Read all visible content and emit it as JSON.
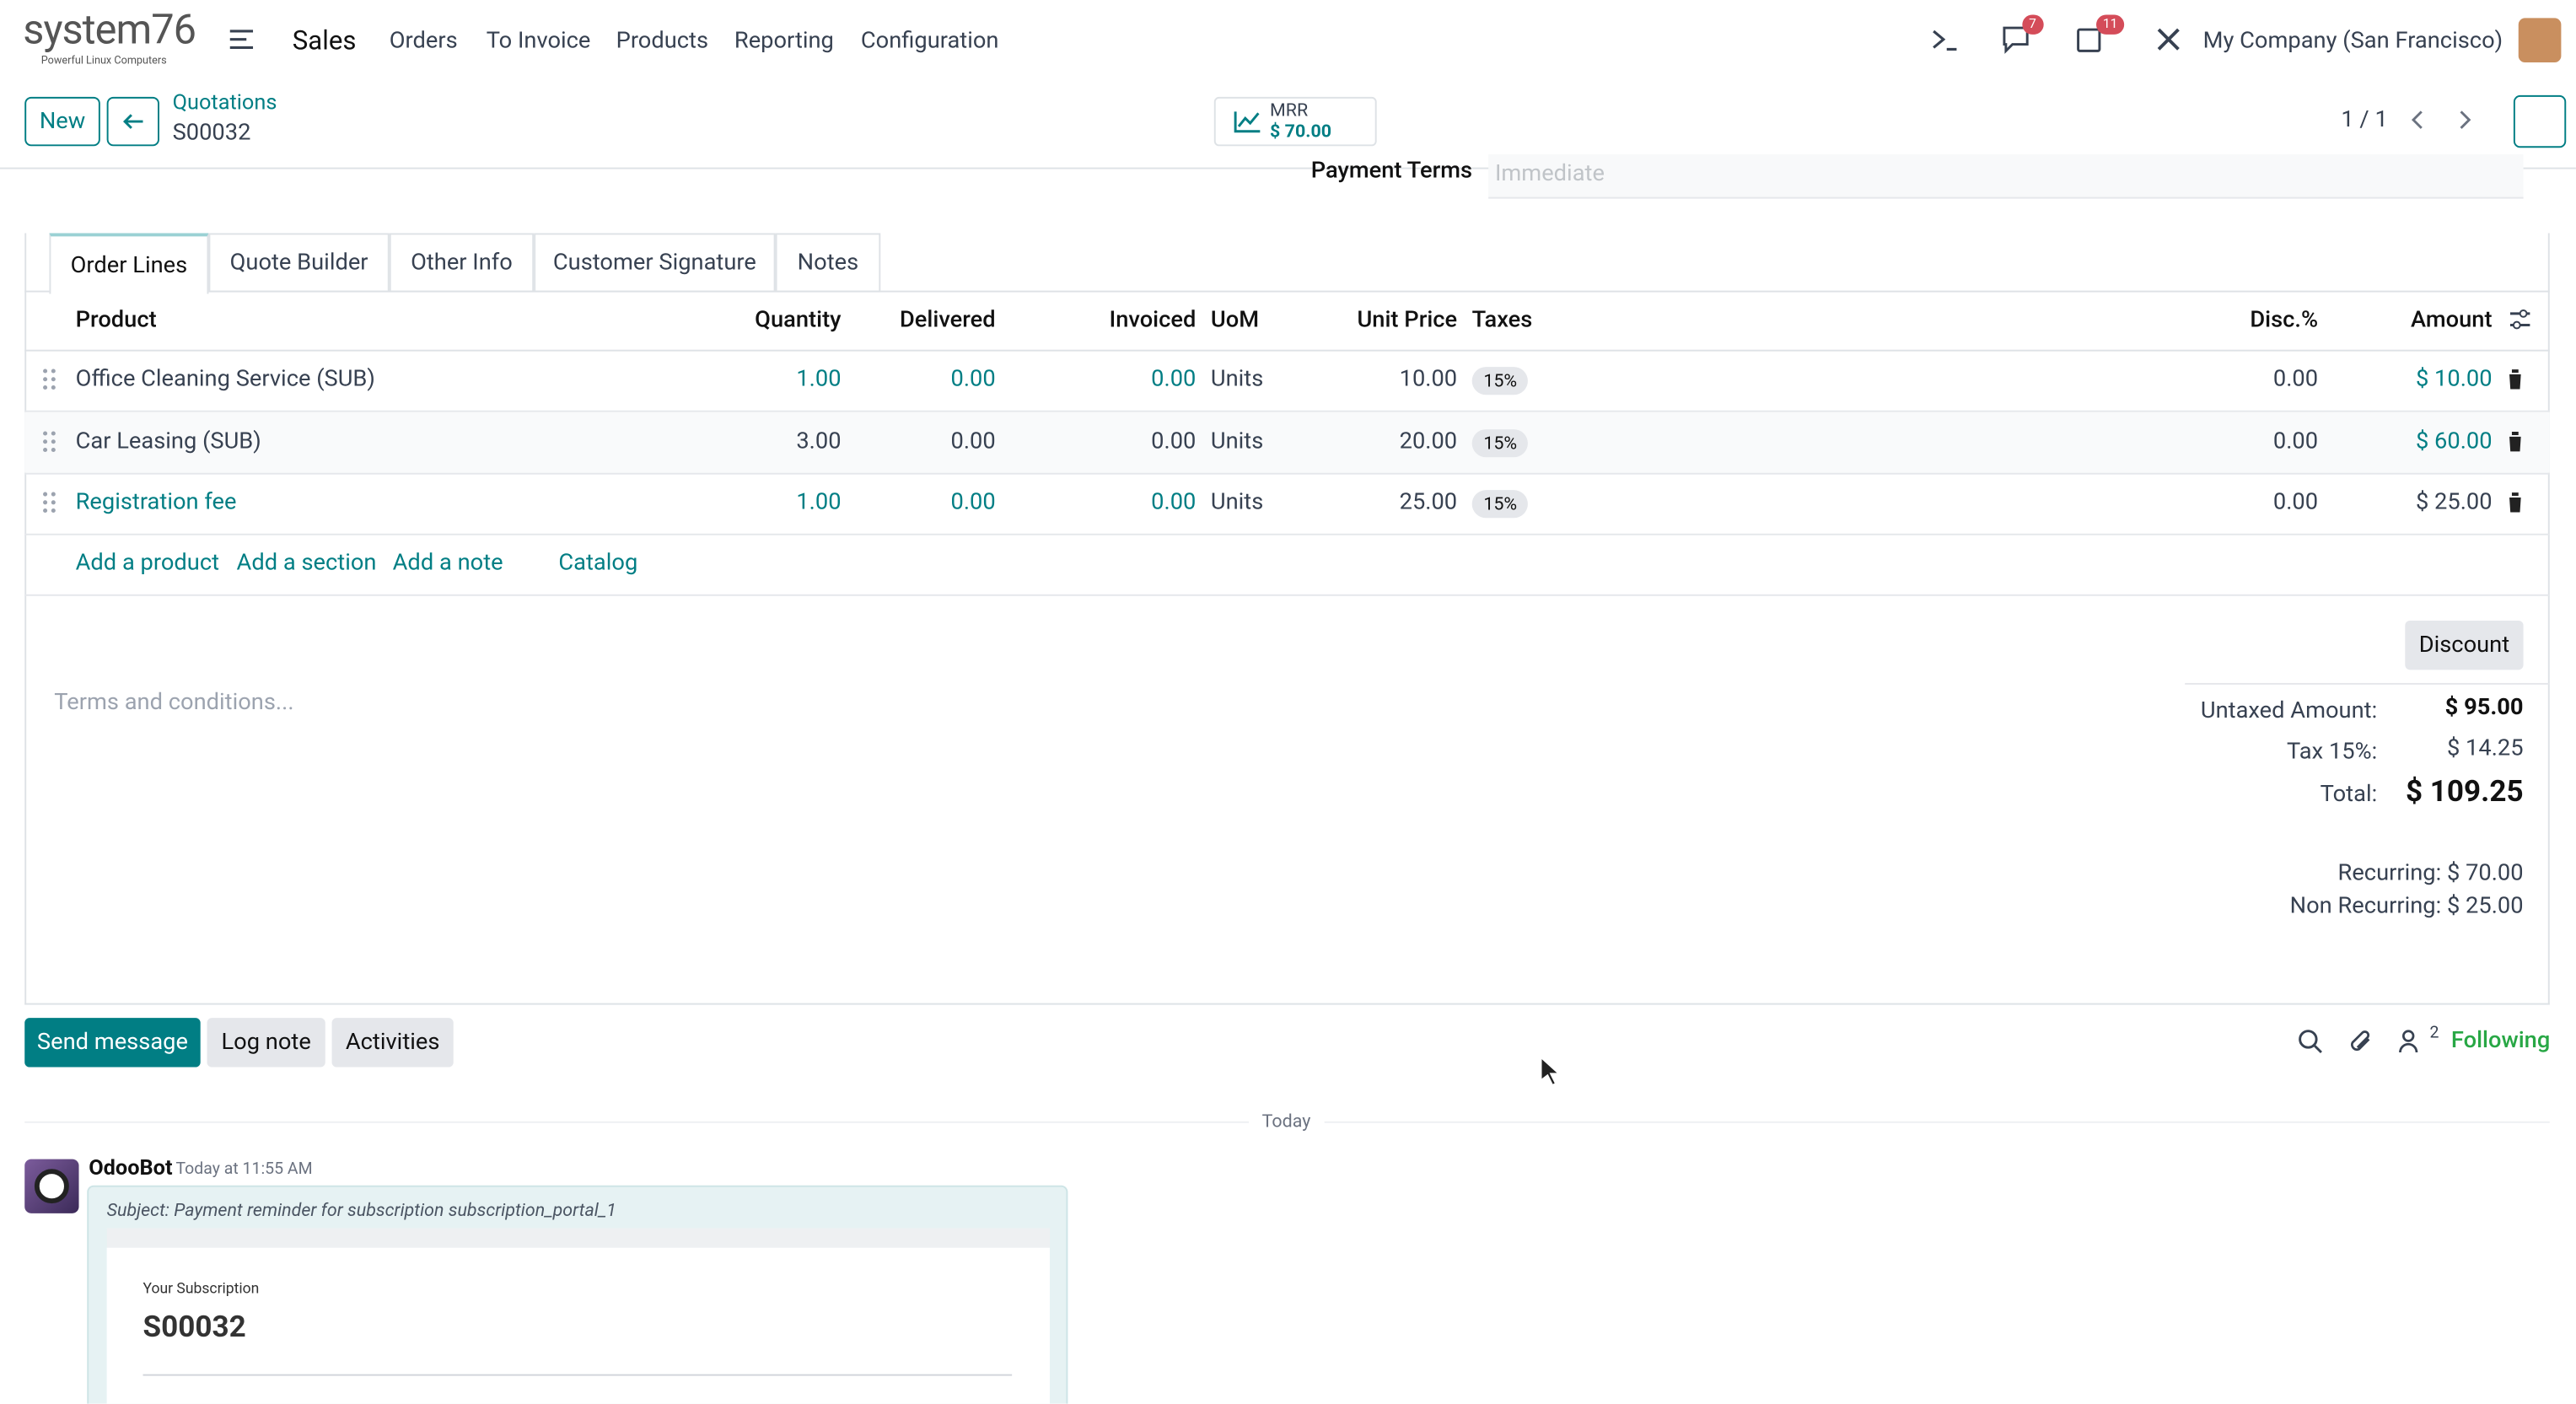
{
  "navbar": {
    "brand": "system76",
    "brand_tagline": "Powerful Linux Computers",
    "app": "Sales",
    "menu": [
      "Orders",
      "To Invoice",
      "Products",
      "Reporting",
      "Configuration"
    ],
    "messages_badge": "7",
    "activities_badge": "11",
    "company": "My Company (San Francisco)"
  },
  "control_panel": {
    "new_button": "New",
    "breadcrumb": "Quotations",
    "record": "S00032",
    "mrr_label": "MRR",
    "mrr_value": "$ 70.00",
    "pager": "1 / 1"
  },
  "form": {
    "payment_terms_label": "Payment Terms",
    "payment_terms_value": "Immediate"
  },
  "tabs": [
    "Order Lines",
    "Quote Builder",
    "Other Info",
    "Customer Signature",
    "Notes"
  ],
  "table": {
    "headers": [
      "Product",
      "Quantity",
      "Delivered",
      "Invoiced",
      "UoM",
      "Unit Price",
      "Taxes",
      "Disc.%",
      "Amount"
    ],
    "rows": [
      [
        "Office Cleaning Service (SUB)",
        "1.00",
        "0.00",
        "0.00",
        "Units",
        "10.00",
        "15%",
        "0.00",
        "$ 10.00"
      ],
      [
        "Car Leasing (SUB)",
        "3.00",
        "0.00",
        "0.00",
        "Units",
        "20.00",
        "15%",
        "0.00",
        "$ 60.00"
      ],
      [
        "Registration fee",
        "1.00",
        "0.00",
        "0.00",
        "Units",
        "25.00",
        "15%",
        "0.00",
        "$ 25.00"
      ]
    ],
    "actions": [
      "Add a product",
      "Add a section",
      "Add a note",
      "Catalog"
    ]
  },
  "terms_placeholder": "Terms and conditions...",
  "discount_button": "Discount",
  "totals": {
    "untaxed_label": "Untaxed Amount:",
    "untaxed": "$ 95.00",
    "tax_label": "Tax 15%:",
    "tax": "$ 14.25",
    "total_label": "Total:",
    "total": "$ 109.25",
    "recurring": "Recurring: $ 70.00",
    "non_recurring": "Non Recurring: $ 25.00"
  },
  "chatter": {
    "buttons": [
      "Send message",
      "Log note",
      "Activities"
    ],
    "followers": "2",
    "following": "Following",
    "date": "Today",
    "message": {
      "author": "OdooBot",
      "time": "Today at 11:55 AM",
      "subject": "Subject: Payment reminder for subscription subscription_portal_1",
      "body_label": "Your Subscription",
      "body_title": "S00032"
    }
  }
}
